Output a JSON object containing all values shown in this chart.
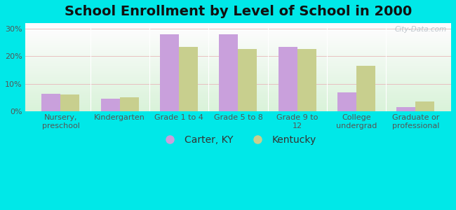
{
  "title": "School Enrollment by Level of School in 2000",
  "categories": [
    "Nursery,\npreschool",
    "Kindergarten",
    "Grade 1 to 4",
    "Grade 5 to 8",
    "Grade 9 to\n12",
    "College\nundergrad",
    "Graduate or\nprofessional"
  ],
  "carter_ky": [
    6.5,
    4.5,
    28.0,
    28.0,
    23.5,
    7.0,
    1.5
  ],
  "kentucky": [
    6.0,
    5.0,
    23.5,
    22.5,
    22.5,
    16.5,
    3.5
  ],
  "carter_color": "#c9a0dc",
  "kentucky_color": "#c8cf8e",
  "bg_color": "#00e8e8",
  "ylabel_ticks": [
    0,
    10,
    20,
    30
  ],
  "ylim": [
    0,
    32
  ],
  "legend_carter": "Carter, KY",
  "legend_kentucky": "Kentucky",
  "watermark": "City-Data.com",
  "title_fontsize": 14,
  "tick_fontsize": 8,
  "legend_fontsize": 10,
  "bar_width": 0.32
}
